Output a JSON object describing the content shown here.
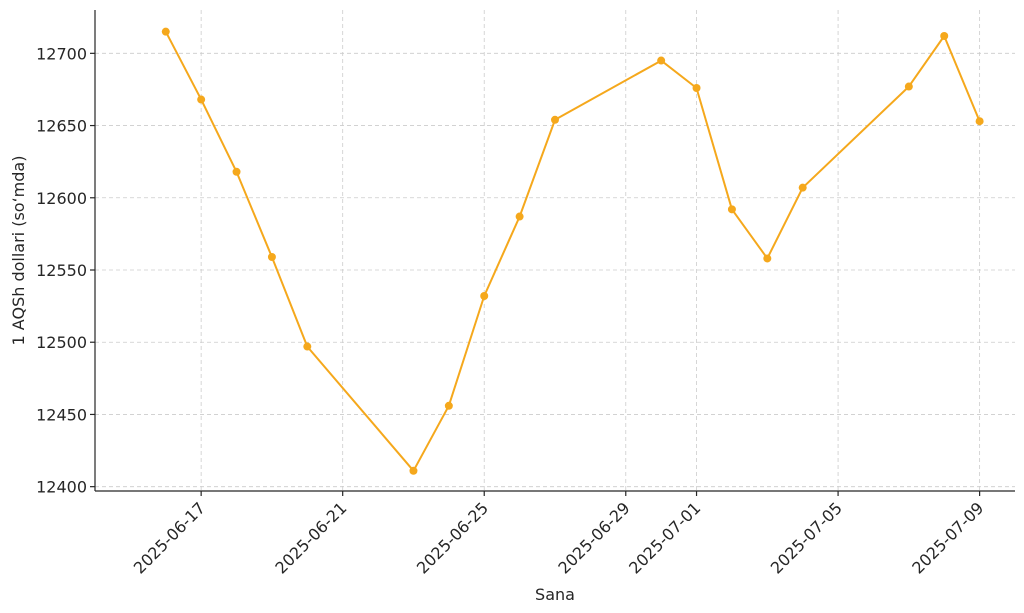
{
  "chart_data": {
    "type": "line",
    "xlabel": "Sana",
    "ylabel": "1 AQSh dollari (so‘mda)",
    "color": "#f5a81c",
    "grid": true,
    "x_tick_labels": [
      "2025-06-17",
      "2025-06-21",
      "2025-06-25",
      "2025-06-29",
      "2025-07-01",
      "2025-07-05",
      "2025-07-09"
    ],
    "y_tick_labels": [
      "12400",
      "12450",
      "12500",
      "12550",
      "12600",
      "12650",
      "12700"
    ],
    "ylim": [
      12397,
      12730
    ],
    "xlim": [
      "2025-06-14",
      "2025-07-10"
    ],
    "series": [
      {
        "points": [
          {
            "x": "2025-06-16",
            "y": 12715
          },
          {
            "x": "2025-06-17",
            "y": 12668
          },
          {
            "x": "2025-06-18",
            "y": 12618
          },
          {
            "x": "2025-06-19",
            "y": 12559
          },
          {
            "x": "2025-06-20",
            "y": 12497
          },
          {
            "x": "2025-06-23",
            "y": 12411
          },
          {
            "x": "2025-06-24",
            "y": 12456
          },
          {
            "x": "2025-06-25",
            "y": 12532
          },
          {
            "x": "2025-06-26",
            "y": 12587
          },
          {
            "x": "2025-06-27",
            "y": 12654
          },
          {
            "x": "2025-06-30",
            "y": 12695
          },
          {
            "x": "2025-07-01",
            "y": 12676
          },
          {
            "x": "2025-07-02",
            "y": 12592
          },
          {
            "x": "2025-07-03",
            "y": 12558
          },
          {
            "x": "2025-07-04",
            "y": 12607
          },
          {
            "x": "2025-07-07",
            "y": 12677
          },
          {
            "x": "2025-07-08",
            "y": 12712
          },
          {
            "x": "2025-07-09",
            "y": 12653
          }
        ]
      }
    ]
  }
}
